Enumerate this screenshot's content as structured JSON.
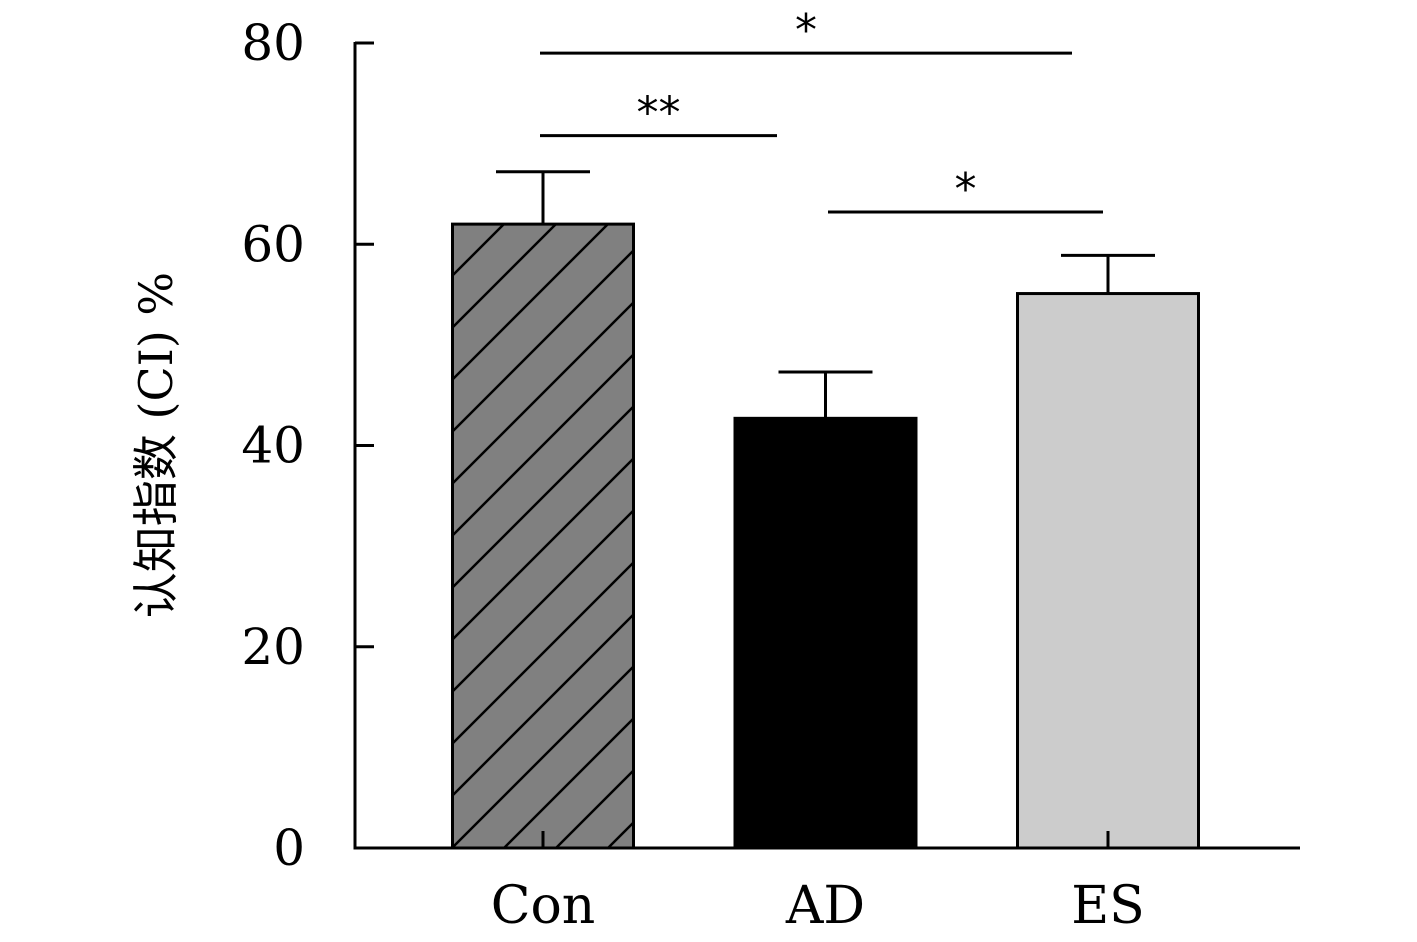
{
  "chart_data": {
    "type": "bar",
    "title": "",
    "xlabel": "",
    "ylabel": "认知指数 (CI) %",
    "ylim": [
      0,
      80
    ],
    "yticks": [
      0,
      20,
      40,
      60,
      80
    ],
    "ytick_labels": [
      "0",
      "20",
      "40",
      "60",
      "80"
    ],
    "grid": false,
    "categories": [
      "Con",
      "AD",
      "ES"
    ],
    "values": [
      62,
      42.7,
      55.1
    ],
    "errors": [
      5.2,
      4.6,
      3.8
    ],
    "bar_styles": [
      {
        "fill": "#808080",
        "pattern": "diagonal-hatch"
      },
      {
        "fill": "#000000",
        "pattern": "solid"
      },
      {
        "fill": "#cccccc",
        "pattern": "solid"
      }
    ],
    "significance": [
      {
        "from": "Con",
        "to": "ES",
        "label": "*",
        "level": 79
      },
      {
        "from": "Con",
        "to": "AD",
        "label": "**",
        "level": 70.8
      },
      {
        "from": "AD",
        "to": "ES",
        "label": "*",
        "level": 63.2
      }
    ]
  }
}
